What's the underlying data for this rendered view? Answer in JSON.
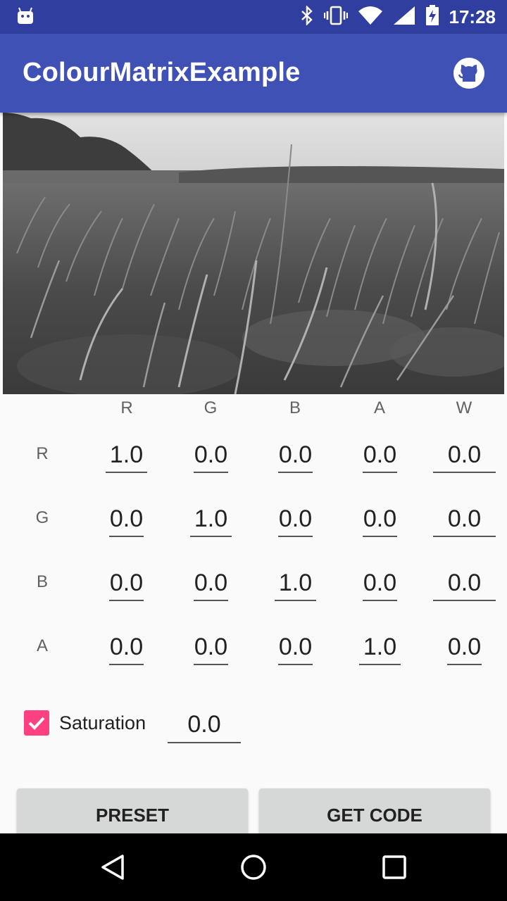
{
  "status_bar": {
    "time": "17:28",
    "icons": [
      "android-icon",
      "bluetooth-icon",
      "vibrate-icon",
      "wifi-icon",
      "signal-icon",
      "battery-charging-icon"
    ]
  },
  "app_bar": {
    "title": "ColourMatrixExample",
    "action_icon": "github-icon"
  },
  "matrix": {
    "column_headers": [
      "R",
      "G",
      "B",
      "A",
      "W"
    ],
    "row_headers": [
      "R",
      "G",
      "B",
      "A"
    ],
    "rows": [
      [
        "1.0",
        "0.0",
        "0.0",
        "0.0",
        "0.0"
      ],
      [
        "0.0",
        "1.0",
        "0.0",
        "0.0",
        "0.0"
      ],
      [
        "0.0",
        "0.0",
        "1.0",
        "0.0",
        "0.0"
      ],
      [
        "0.0",
        "0.0",
        "0.0",
        "1.0",
        "0.0"
      ]
    ]
  },
  "saturation": {
    "checked": true,
    "label": "Saturation",
    "value": "0.0"
  },
  "buttons": {
    "preset": "PRESET",
    "get_code": "GET CODE"
  },
  "nav_bar": {
    "icons": [
      "back-icon",
      "home-icon",
      "recents-icon"
    ]
  },
  "colors": {
    "status_bar": "#303f9f",
    "app_bar": "#3f51b5",
    "accent": "#ff4081"
  }
}
